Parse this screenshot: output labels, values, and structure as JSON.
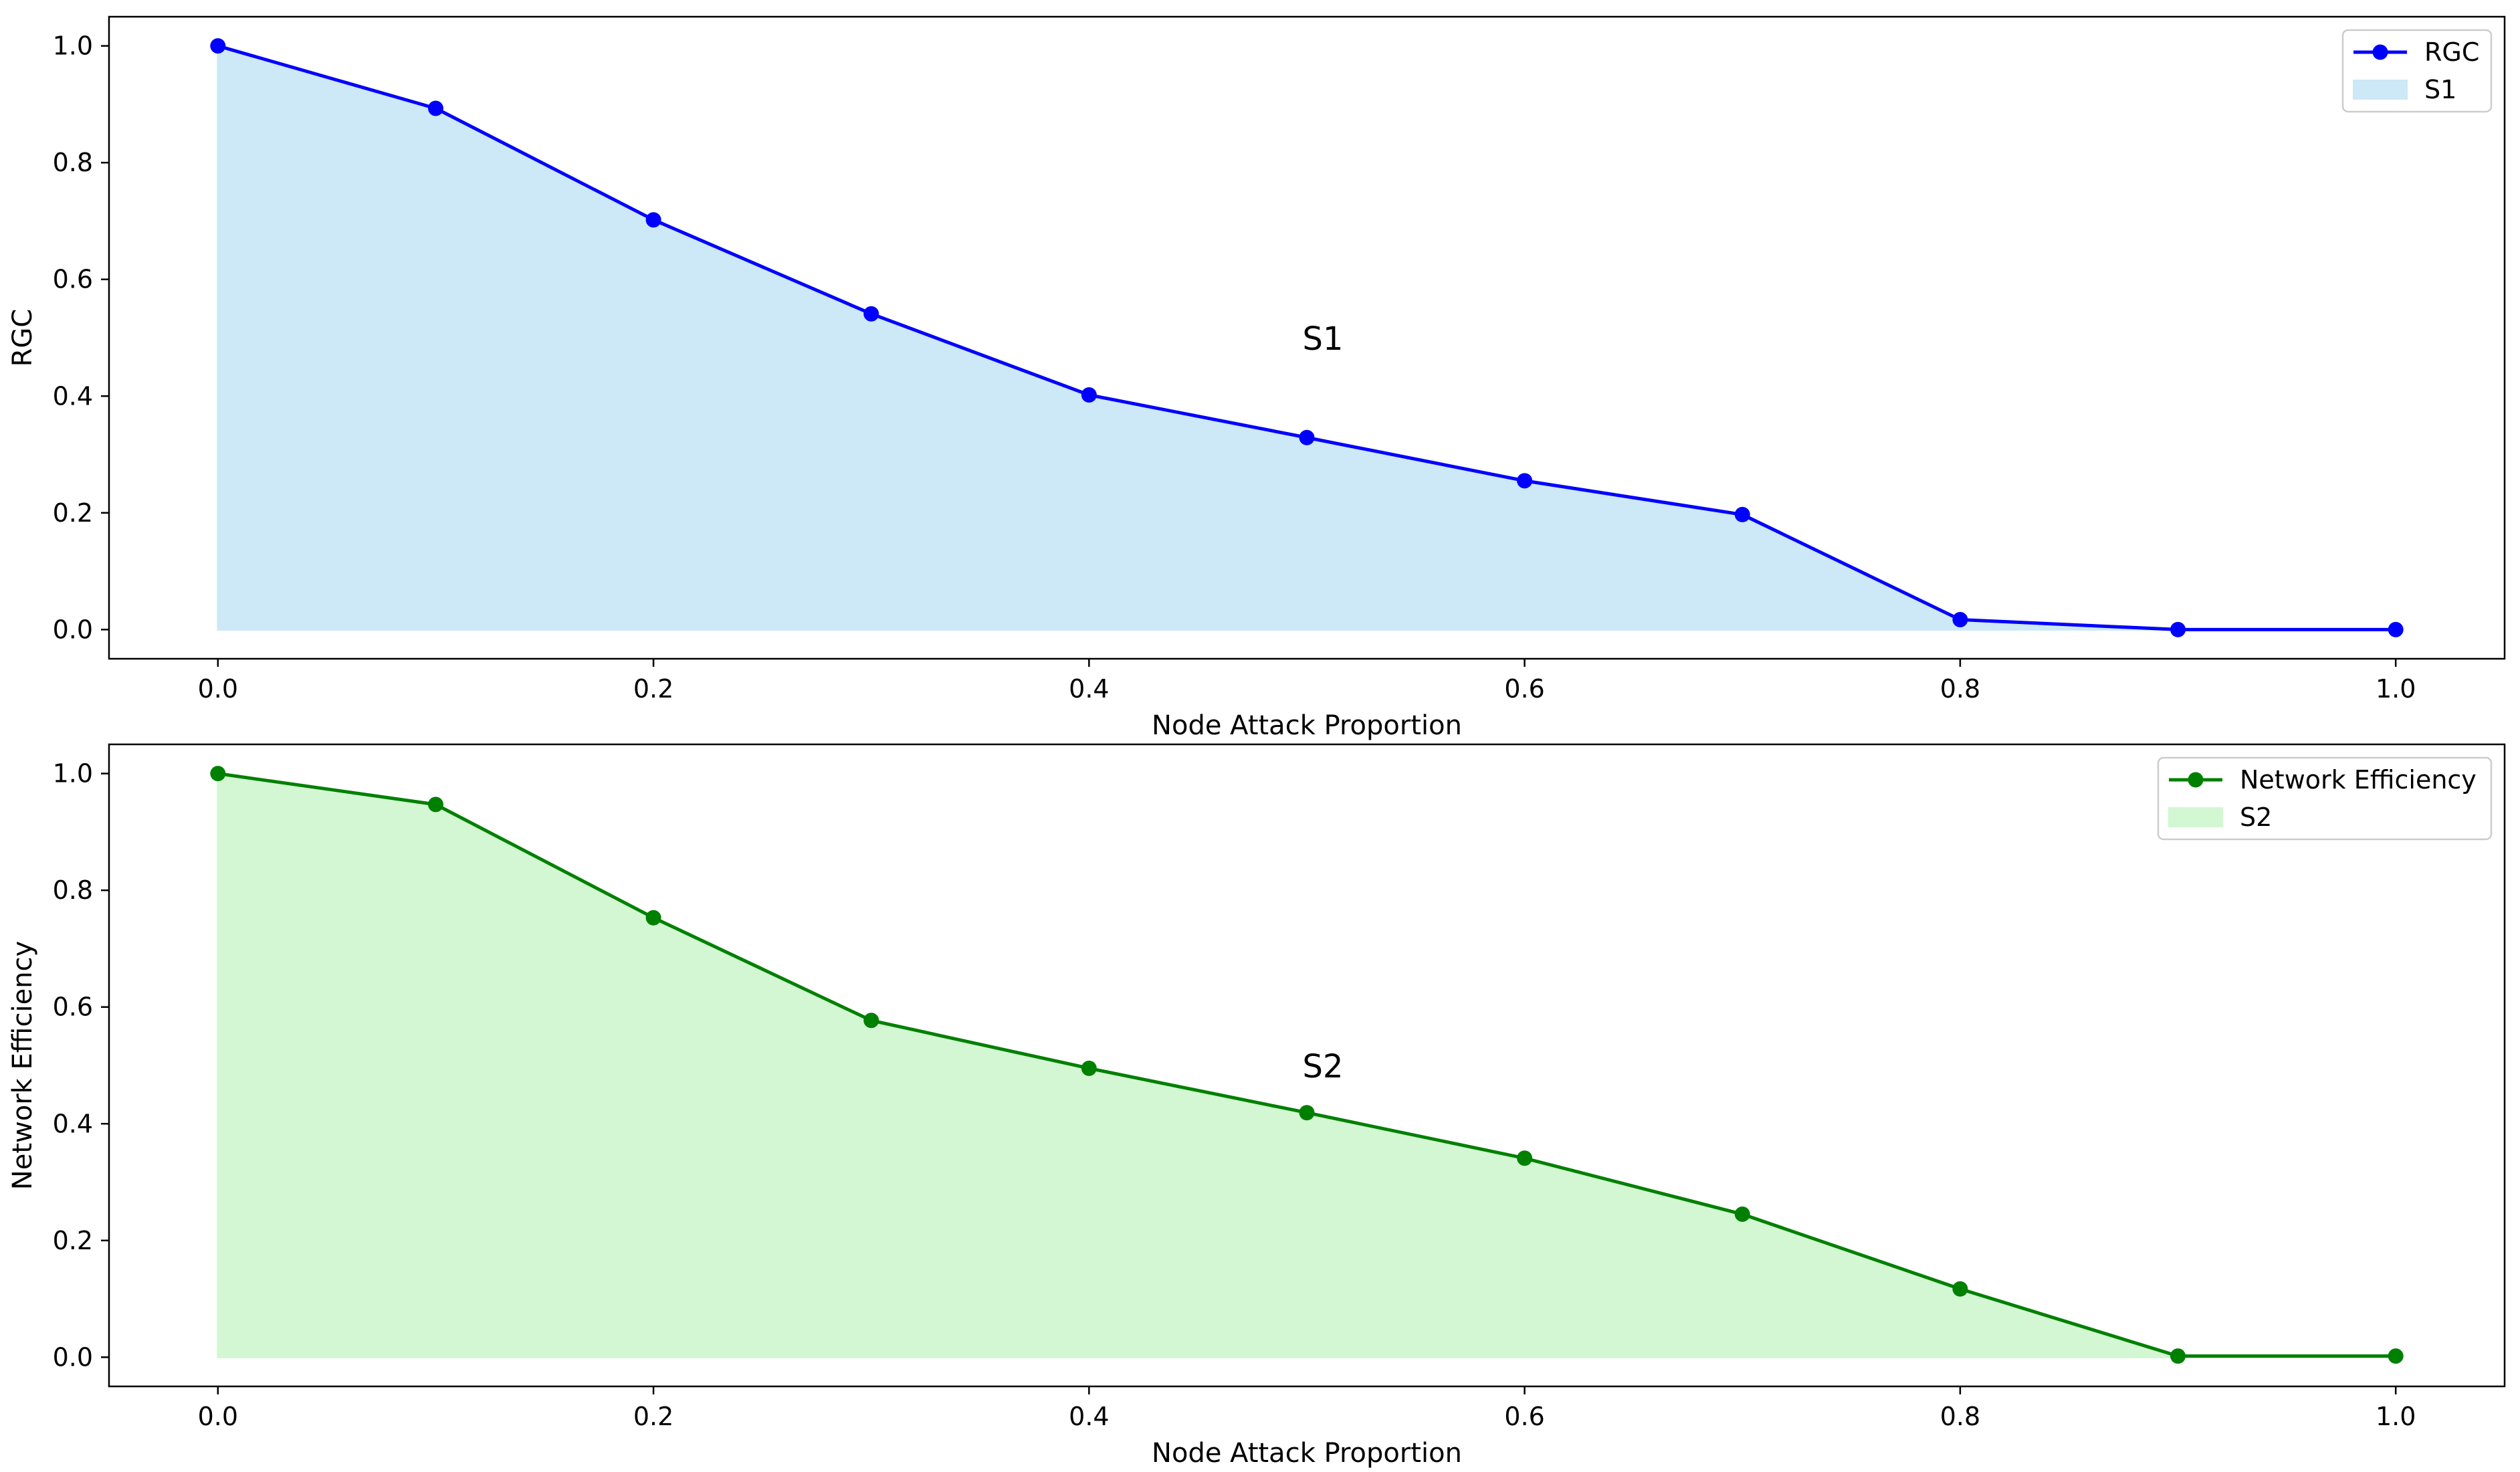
{
  "chart_data": [
    {
      "type": "area",
      "xlabel": "Node Attack Proportion",
      "ylabel": "RGC",
      "xlim": [
        -0.05,
        1.05
      ],
      "ylim": [
        -0.05,
        1.05
      ],
      "xticks": [
        "0.0",
        "0.2",
        "0.4",
        "0.6",
        "0.8",
        "1.0"
      ],
      "yticks": [
        "0.0",
        "0.2",
        "0.4",
        "0.6",
        "0.8",
        "1.0"
      ],
      "grid": false,
      "legend_position": "top-right",
      "x": [
        0.0,
        0.1,
        0.2,
        0.3,
        0.4,
        0.5,
        0.6,
        0.7,
        0.8,
        0.9,
        1.0
      ],
      "series": [
        {
          "name": "RGC",
          "values": [
            1.0,
            0.893,
            0.702,
            0.541,
            0.402,
            0.329,
            0.255,
            0.197,
            0.017,
            0.0,
            0.0
          ],
          "color": "#0000ff",
          "fill_name": "S1",
          "fill_color": "#cde8f6"
        }
      ],
      "annotation": {
        "text": "S1",
        "x": 0.5,
        "y": 0.5
      }
    },
    {
      "type": "area",
      "xlabel": "Node Attack Proportion",
      "ylabel": "Network Efficiency",
      "xlim": [
        -0.05,
        1.05
      ],
      "ylim": [
        -0.05,
        1.05
      ],
      "xticks": [
        "0.0",
        "0.2",
        "0.4",
        "0.6",
        "0.8",
        "1.0"
      ],
      "yticks": [
        "0.0",
        "0.2",
        "0.4",
        "0.6",
        "0.8",
        "1.0"
      ],
      "grid": false,
      "legend_position": "top-right",
      "x": [
        0.0,
        0.1,
        0.2,
        0.3,
        0.4,
        0.5,
        0.6,
        0.7,
        0.8,
        0.9,
        1.0
      ],
      "series": [
        {
          "name": "Network Efficiency",
          "values": [
            1.0,
            0.947,
            0.753,
            0.577,
            0.495,
            0.419,
            0.341,
            0.245,
            0.117,
            0.002,
            0.002
          ],
          "color": "#008000",
          "fill_name": "S2",
          "fill_color": "#d2f7d2"
        }
      ],
      "annotation": {
        "text": "S2",
        "x": 0.5,
        "y": 0.5
      }
    }
  ]
}
